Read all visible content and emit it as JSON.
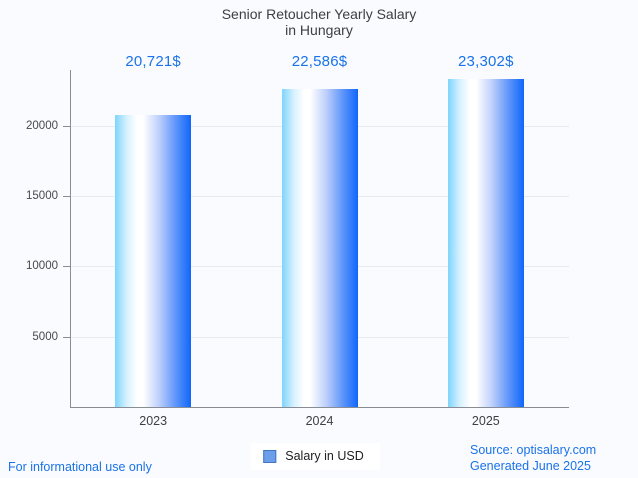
{
  "title": {
    "line1": "Senior Retoucher Yearly Salary",
    "line2": "in Hungary"
  },
  "chart_data": {
    "type": "bar",
    "title": "Senior Retoucher Yearly Salary in Hungary",
    "categories": [
      "2023",
      "2024",
      "2025"
    ],
    "values": [
      20721,
      22586,
      23302
    ],
    "value_labels": [
      "20,721$",
      "22,586$",
      "23,302$"
    ],
    "series": [
      {
        "name": "Salary in USD",
        "values": [
          20721,
          22586,
          23302
        ]
      }
    ],
    "xlabel": "",
    "ylabel": "",
    "ylim": [
      0,
      24000
    ],
    "yticks": [
      5000,
      10000,
      15000,
      20000
    ],
    "grid": true,
    "legend_position": "bottom"
  },
  "legend": {
    "label": "Salary in USD",
    "swatch_icon": "blue-square-icon"
  },
  "footer": {
    "left": "For informational use only",
    "source": "Source: optisalary.com",
    "generated": "Generated June 2025"
  },
  "colors": {
    "background": "#fafbfe",
    "accent_blue": "#1a73e8",
    "text_dark": "#3c4043",
    "axis_gray": "#878d93",
    "grid_gray": "#e8eaed",
    "bar_gradient_left": "#7fd4fc",
    "bar_gradient_mid": "#ffffff",
    "bar_gradient_right": "#0f66fb",
    "legend_swatch_fill": "#6d9eeb",
    "legend_swatch_border": "#4176bd"
  }
}
